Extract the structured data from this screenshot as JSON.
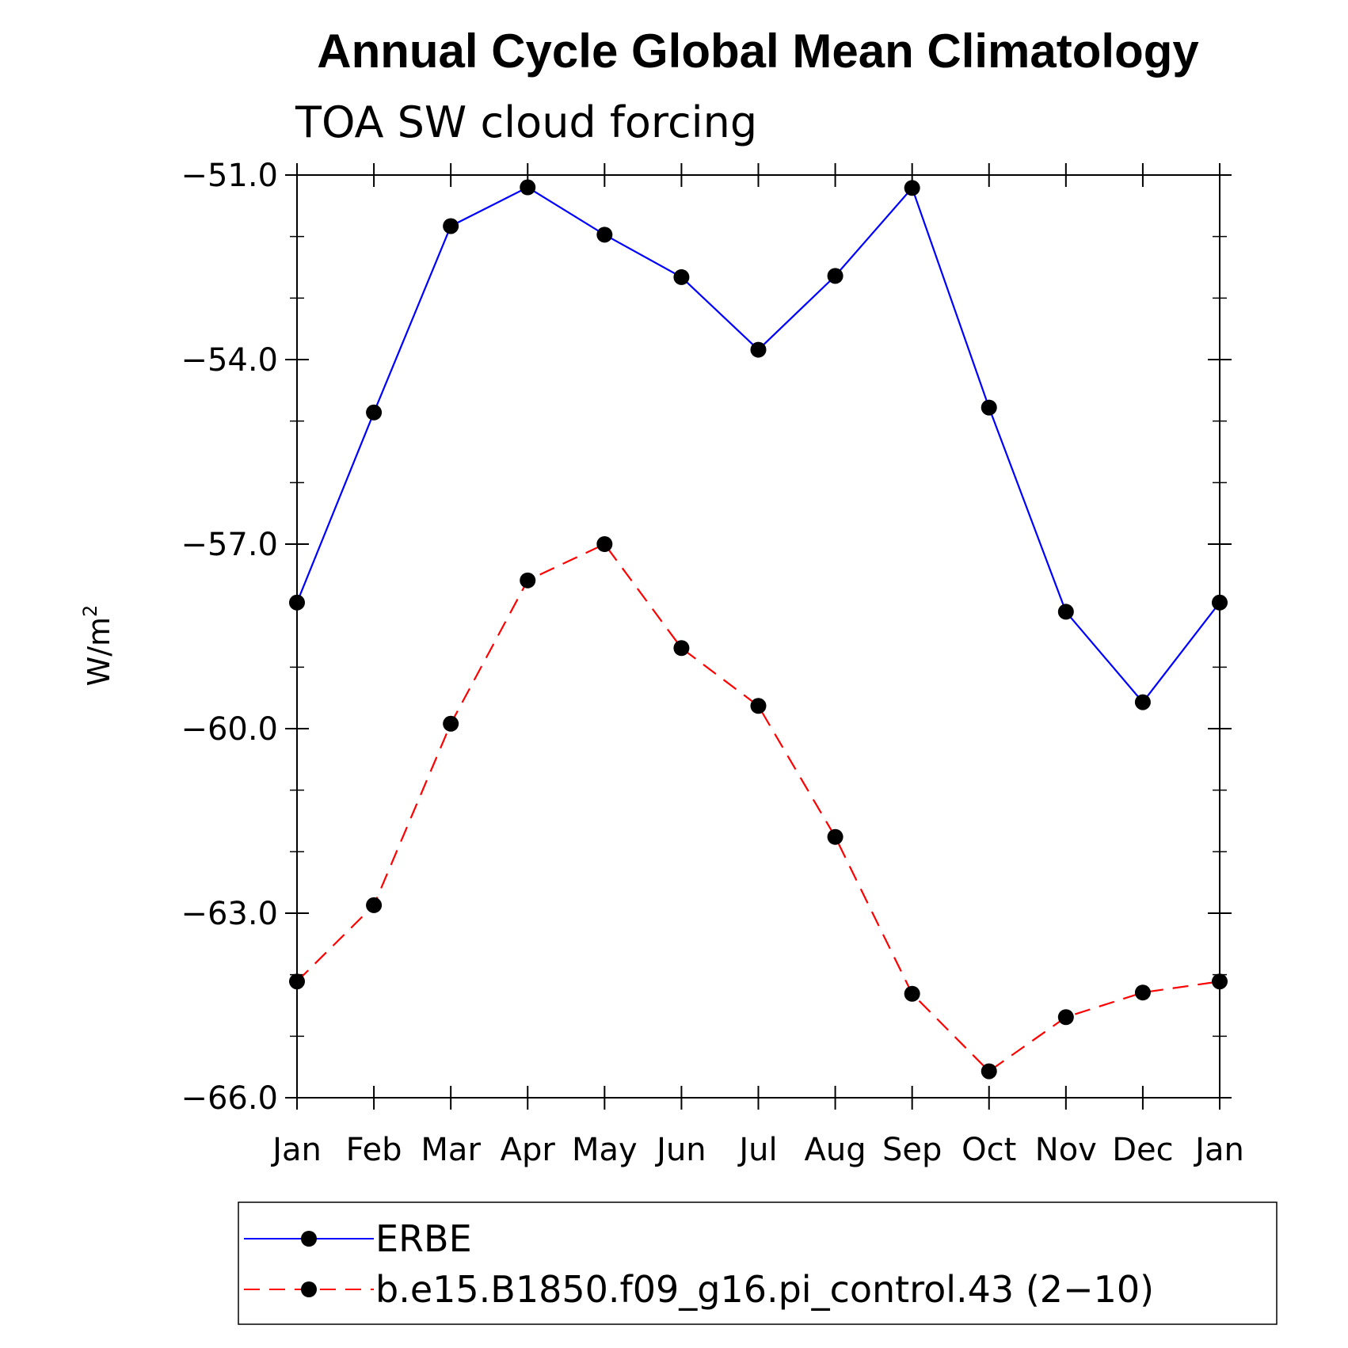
{
  "chart_data": {
    "type": "line",
    "title": "Annual Cycle Global Mean Climatology",
    "subtitle": "TOA SW cloud forcing",
    "ylabel": "W/m",
    "ylabel_superscript": "2",
    "xlabel": "",
    "categories": [
      "Jan",
      "Feb",
      "Mar",
      "Apr",
      "May",
      "Jun",
      "Jul",
      "Aug",
      "Sep",
      "Oct",
      "Nov",
      "Dec",
      "Jan"
    ],
    "ylim": [
      -66.0,
      -51.0
    ],
    "yticks": [
      -51.0,
      -54.0,
      -57.0,
      -60.0,
      -63.0,
      -66.0
    ],
    "ytick_labels": [
      "−51.0",
      "−54.0",
      "−57.0",
      "−60.0",
      "−63.0",
      "−66.0"
    ],
    "series": [
      {
        "name": "ERBE",
        "color": "#0000ff",
        "style": "solid",
        "marker": "dot",
        "values": [
          -57.95,
          -54.86,
          -51.83,
          -51.2,
          -51.97,
          -52.66,
          -53.84,
          -52.64,
          -51.21,
          -54.78,
          -58.1,
          -59.57,
          -57.95
        ]
      },
      {
        "name": "b.e15.B1850.f09_g16.pi_control.43 (2−10)",
        "color": "#ff0000",
        "style": "dashed",
        "marker": "dot",
        "values": [
          -64.11,
          -62.87,
          -59.92,
          -57.59,
          -57.0,
          -58.69,
          -59.63,
          -61.76,
          -64.31,
          -65.57,
          -64.69,
          -64.29,
          -64.11
        ]
      }
    ],
    "legend": {
      "position": "bottom"
    }
  }
}
